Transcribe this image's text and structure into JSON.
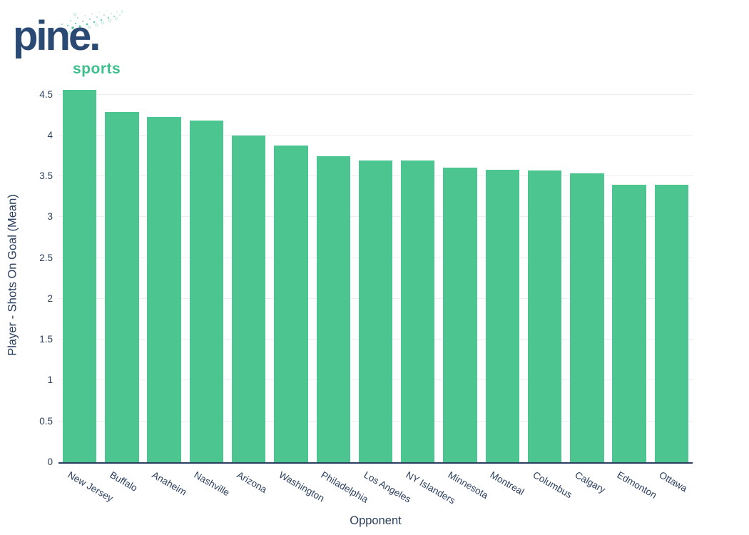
{
  "logo": {
    "brand": "pine.",
    "sub": "sports",
    "brand_color": "#2b4a73",
    "sub_color": "#3ec08d"
  },
  "chart_data": {
    "type": "bar",
    "title": "",
    "categories": [
      "New Jersey",
      "Buffalo",
      "Anaheim",
      "Nashville",
      "Arizona",
      "Washington",
      "Philadelphia",
      "Los Angeles",
      "NY Islanders",
      "Minnesota",
      "Montreal",
      "Columbus",
      "Calgary",
      "Edmonton",
      "Ottawa"
    ],
    "values": [
      4.56,
      4.29,
      4.23,
      4.18,
      4.0,
      3.88,
      3.75,
      3.69,
      3.69,
      3.61,
      3.58,
      3.57,
      3.54,
      3.4,
      3.4
    ],
    "xlabel": "Opponent",
    "ylabel": "Player - Shots On Goal (Mean)",
    "ylim": [
      0,
      4.61
    ],
    "ytick_labels": [
      "0",
      "0.5",
      "1",
      "1.5",
      "2",
      "2.5",
      "3",
      "3.5",
      "4",
      "4.5"
    ],
    "tick_angle_deg": 30,
    "grid": "horizontal",
    "legend": "none",
    "bar_color": "#4cc590",
    "axis_color": "#2a3f5f",
    "grid_color": "#ebedf2",
    "bar_gap_fraction": 0.2
  }
}
